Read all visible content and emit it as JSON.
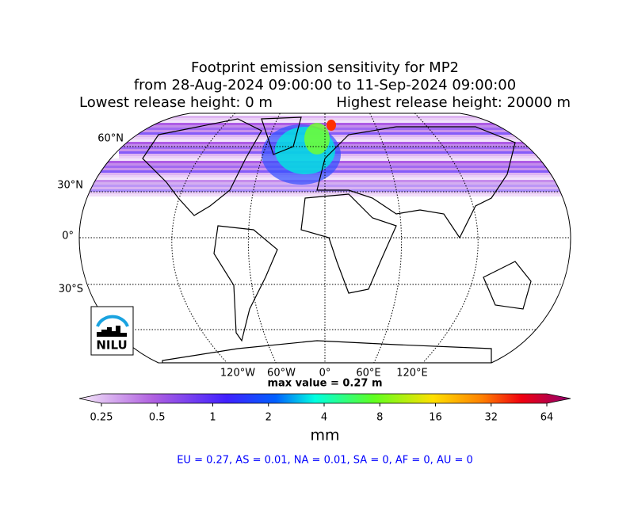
{
  "header": {
    "title": "Footprint emission sensitivity for MP2",
    "period": "from 28-Aug-2024 09:00:00 to 11-Sep-2024 09:00:00",
    "lowest_release": "Lowest release height: 0 m",
    "highest_release": "Highest release height: 20000 m"
  },
  "map": {
    "lat_labels": [
      "60°N",
      "30°N",
      "0°",
      "30°S"
    ],
    "lon_labels": [
      "120°W",
      "60°W",
      "0°",
      "60°E",
      "120°E"
    ],
    "logo": "NILU",
    "max_value": "max value = 0.27 m"
  },
  "colorbar": {
    "scale": "log",
    "ticks": [
      0.25,
      0.5,
      1,
      2,
      4,
      8,
      16,
      32,
      64
    ],
    "label": "mm"
  },
  "summary": "EU = 0.27,  AS = 0.01,  NA = 0.01,  SA = 0,  AF = 0,  AU = 0"
}
